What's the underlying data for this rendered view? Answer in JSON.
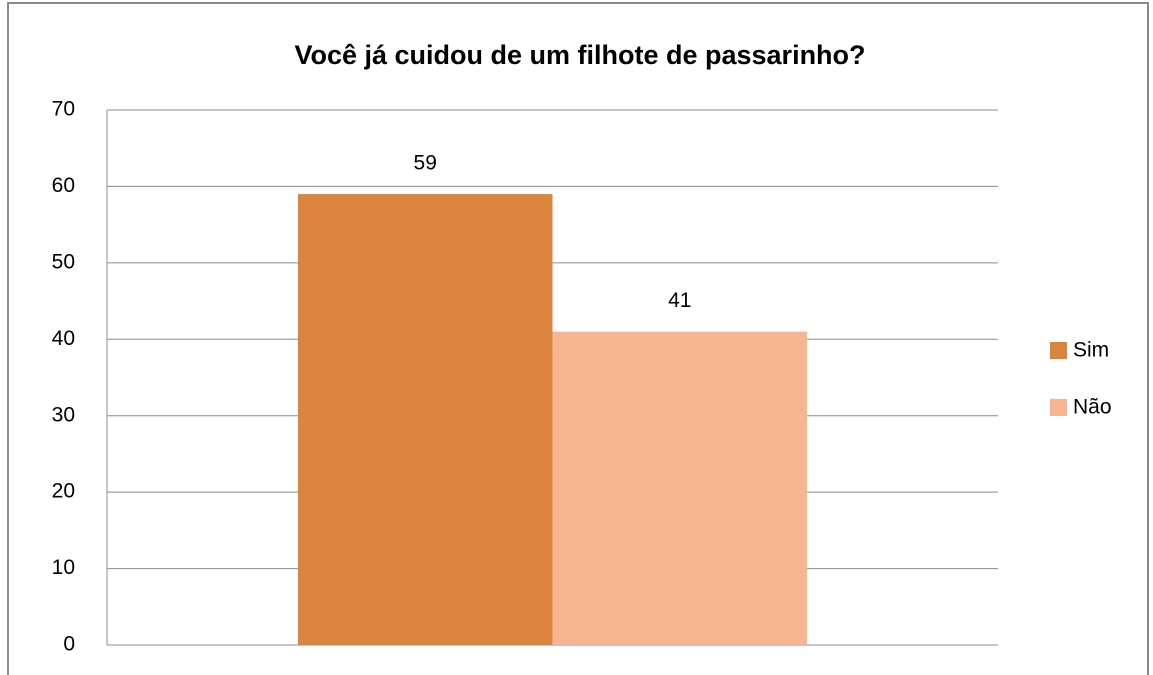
{
  "chart_data": {
    "type": "bar",
    "title": "Você já cuidou de um filhote de passarinho?",
    "categories": [
      null
    ],
    "series": [
      {
        "name": "Sim",
        "color": "#db843d",
        "values": [
          59
        ]
      },
      {
        "name": "Não",
        "color": "#f8b592",
        "values": [
          41
        ]
      }
    ],
    "ylim": [
      0,
      70
    ],
    "yticks": [
      0,
      10,
      20,
      30,
      40,
      50,
      60,
      70
    ],
    "grid": true,
    "legend": "right"
  }
}
